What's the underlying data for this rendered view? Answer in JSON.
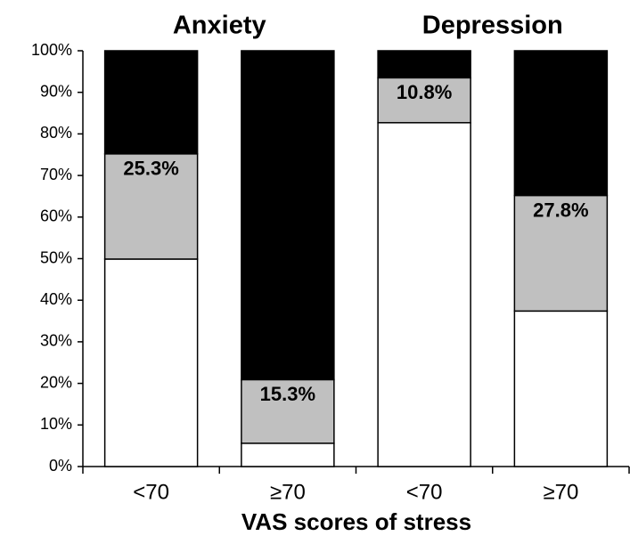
{
  "chart_data": {
    "type": "stacked_bar",
    "groups": [
      "Anxiety",
      "Depression"
    ],
    "categories": [
      "<70",
      "≥70",
      "<70",
      "≥70"
    ],
    "xlabel": "VAS scores of stress",
    "series": [
      {
        "color": "#ffffff",
        "values": [
          49.9,
          5.6,
          82.7,
          37.4
        ]
      },
      {
        "color": "#c0c0c0",
        "values": [
          25.3,
          15.3,
          10.8,
          27.8
        ],
        "value_labels": [
          "25.3%",
          "15.3%",
          "10.8%",
          "27.8%"
        ]
      },
      {
        "color": "#000000",
        "values": [
          24.8,
          79.1,
          6.5,
          34.8
        ],
        "value_labels": [
          "24.8%",
          "79.1%",
          "6.5%",
          "34.8%"
        ]
      }
    ],
    "ylim": [
      0,
      100
    ],
    "yticks": [
      {
        "value": 0,
        "label": "0%"
      },
      {
        "value": 10,
        "label": "10%"
      },
      {
        "value": 20,
        "label": "20%"
      },
      {
        "value": 30,
        "label": "30%"
      },
      {
        "value": 40,
        "label": "40%"
      },
      {
        "value": 50,
        "label": "50%"
      },
      {
        "value": 60,
        "label": "60%"
      },
      {
        "value": 70,
        "label": "70%"
      },
      {
        "value": 80,
        "label": "80%"
      },
      {
        "value": 90,
        "label": "90%"
      },
      {
        "value": 100,
        "label": "100%"
      }
    ]
  }
}
